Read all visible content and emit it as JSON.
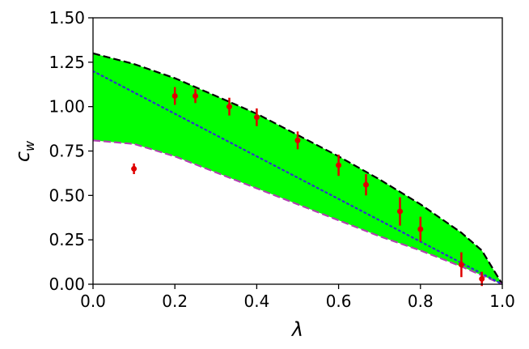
{
  "chart_data": {
    "type": "line",
    "title": "",
    "xlabel": "λ",
    "ylabel": "c",
    "ylabel_subscript": "w",
    "xlim": [
      0.0,
      1.0
    ],
    "ylim": [
      0.0,
      1.5
    ],
    "x_ticks": [
      "0.0",
      "0.2",
      "0.4",
      "0.6",
      "0.8",
      "1.0"
    ],
    "y_ticks": [
      "0.00",
      "0.25",
      "0.50",
      "0.75",
      "1.00",
      "1.25",
      "1.50"
    ],
    "grid": false,
    "legend": null,
    "band": {
      "color": "#00ff00",
      "x": [
        0.0,
        0.1,
        0.2,
        0.3,
        0.4,
        0.5,
        0.6,
        0.7,
        0.8,
        0.9,
        0.95,
        1.0
      ],
      "upper": [
        1.3,
        1.24,
        1.16,
        1.06,
        0.96,
        0.84,
        0.72,
        0.59,
        0.45,
        0.29,
        0.19,
        0.0
      ],
      "lower": [
        0.81,
        0.79,
        0.72,
        0.63,
        0.54,
        0.45,
        0.36,
        0.27,
        0.19,
        0.1,
        0.05,
        0.0
      ]
    },
    "series": [
      {
        "style": "dashed",
        "color": "#000000",
        "x": [
          0.0,
          0.1,
          0.2,
          0.3,
          0.4,
          0.5,
          0.6,
          0.7,
          0.8,
          0.9,
          0.95,
          1.0
        ],
        "values": [
          1.3,
          1.24,
          1.16,
          1.06,
          0.96,
          0.84,
          0.72,
          0.59,
          0.45,
          0.29,
          0.19,
          0.0
        ]
      },
      {
        "style": "dashed",
        "color": "#b040b0",
        "x": [
          0.0,
          0.1,
          0.2,
          0.3,
          0.4,
          0.5,
          0.6,
          0.7,
          0.8,
          0.9,
          0.95,
          1.0
        ],
        "values": [
          0.81,
          0.79,
          0.72,
          0.63,
          0.54,
          0.45,
          0.36,
          0.27,
          0.19,
          0.1,
          0.05,
          0.0
        ]
      },
      {
        "style": "dotted",
        "color": "#3030d0",
        "x": [
          0.0,
          1.0
        ],
        "values": [
          1.2,
          0.0
        ]
      }
    ],
    "points": {
      "color": "#e00000",
      "x": [
        0.1,
        0.2,
        0.25,
        0.333,
        0.4,
        0.5,
        0.6,
        0.667,
        0.75,
        0.8,
        0.9,
        0.95
      ],
      "y": [
        0.65,
        1.06,
        1.06,
        1.0,
        0.94,
        0.81,
        0.67,
        0.56,
        0.41,
        0.31,
        0.11,
        0.03
      ],
      "err": [
        0.03,
        0.05,
        0.04,
        0.05,
        0.05,
        0.05,
        0.06,
        0.06,
        0.08,
        0.07,
        0.07,
        0.04
      ]
    }
  }
}
